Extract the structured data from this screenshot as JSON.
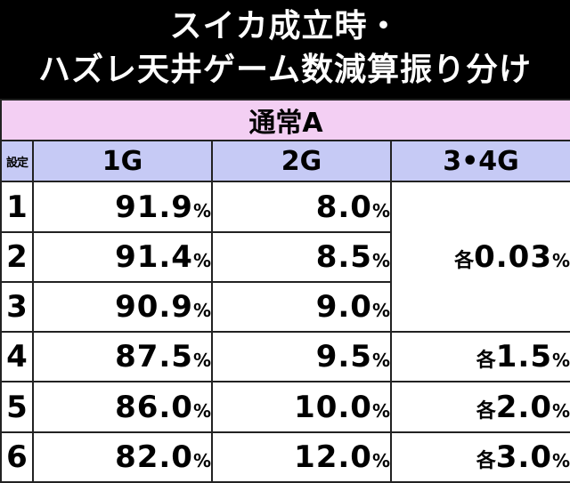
{
  "title": {
    "line1": "スイカ成立時・",
    "line2": "ハズレ天井ゲーム数減算振り分け"
  },
  "table": {
    "group_label": "通常A",
    "columns": {
      "setting": "設定",
      "c1": "1G",
      "c2": "2G",
      "c3": "3•4G"
    },
    "percent_sign": "%",
    "each_prefix": "各",
    "rows": [
      {
        "setting": "1",
        "g1": "91.9",
        "g2": "8.0"
      },
      {
        "setting": "2",
        "g1": "91.4",
        "g2": "8.5"
      },
      {
        "setting": "3",
        "g1": "90.9",
        "g2": "9.0"
      },
      {
        "setting": "4",
        "g1": "87.5",
        "g2": "9.5",
        "g34": "1.5"
      },
      {
        "setting": "5",
        "g1": "86.0",
        "g2": "10.0",
        "g34": "2.0"
      },
      {
        "setting": "6",
        "g1": "82.0",
        "g2": "12.0",
        "g34": "3.0"
      }
    ],
    "g34_settings_1_3": "0.03"
  },
  "colors": {
    "header_bg": "#000000",
    "group_bg": "#f3cff3",
    "column_header_bg": "#c6caf5"
  }
}
